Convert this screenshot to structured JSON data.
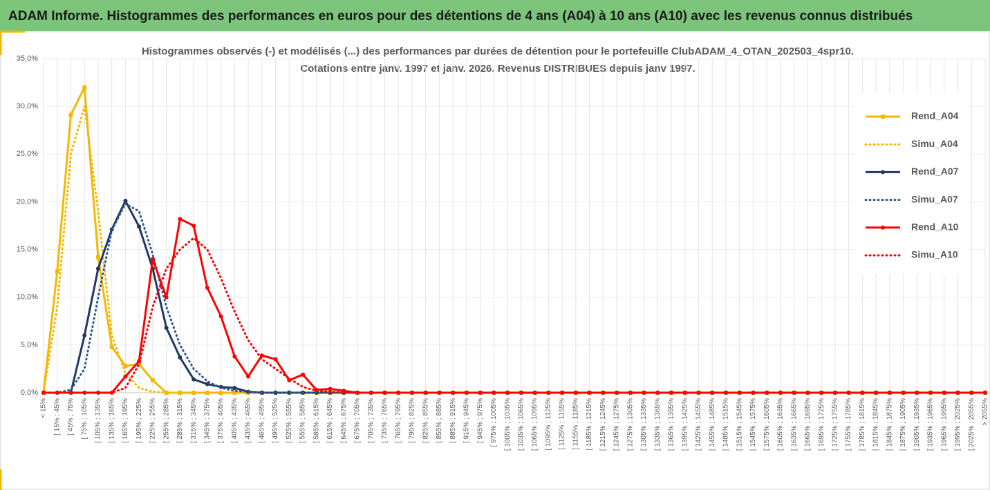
{
  "header": {
    "title": "ADAM Informe. Histogrammes des performances en euros pour des détentions de 4 ans (A04) à 10 ans (A10) avec les revenus connus distribués"
  },
  "chart_data": {
    "type": "line",
    "title": "Histogrammes observés (-) et modélisés (...) des performances par durées de détention pour le portefeuille ClubADAM_4_OTAN_202503_4spr10.",
    "subtitle": "Cotations entre janv. 1997 et janv. 2026. Revenus DISTRIBUES depuis janv 1997.",
    "categories": [
      "< 15%",
      "[ 15% ; 45%",
      "[ 45% ; 75%",
      "[ 75% ; 105%",
      "[ 105% ; 135%",
      "[ 135% ; 165%",
      "[ 165% ; 195%",
      "[ 195% ; 225%",
      "[ 225% ; 255%",
      "[ 255% ; 285%",
      "[ 285% ; 315%",
      "[ 315% ; 345%",
      "[ 345% ; 375%",
      "[ 375% ; 405%",
      "[ 405% ; 435%",
      "[ 435% ; 465%",
      "[ 465% ; 495%",
      "[ 495% ; 525%",
      "[ 525% ; 555%",
      "[ 555% ; 585%",
      "[ 585% ; 615%",
      "[ 615% ; 645%",
      "[ 645% ; 675%",
      "[ 675% ; 705%",
      "[ 705% ; 735%",
      "[ 735% ; 765%",
      "[ 765% ; 795%",
      "[ 795% ; 825%",
      "[ 825% ; 855%",
      "[ 855% ; 885%",
      "[ 885% ; 915%",
      "[ 915% ; 945%",
      "[ 945% ; 975%",
      "[ 975% ; 1005%",
      "[ 1005% ; 1035%",
      "[ 1035% ; 1065%",
      "[ 1065% ; 1095%",
      "[ 1095% ; 1125%",
      "[ 1125% ; 1155%",
      "[ 1155% ; 1185%",
      "[ 1185% ; 1215%",
      "[ 1215% ; 1245%",
      "[ 1245% ; 1275%",
      "[ 1275% ; 1305%",
      "[ 1305% ; 1335%",
      "[ 1335% ; 1365%",
      "[ 1365% ; 1395%",
      "[ 1395% ; 1425%",
      "[ 1425% ; 1455%",
      "[ 1455% ; 1485%",
      "[ 1485% ; 1515%",
      "[ 1515% ; 1545%",
      "[ 1545% ; 1575%",
      "[ 1575% ; 1605%",
      "[ 1605% ; 1635%",
      "[ 1635% ; 1665%",
      "[ 1665% ; 1695%",
      "[ 1695% ; 1725%",
      "[ 1725% ; 1755%",
      "[ 1755% ; 1785%",
      "[ 1785% ; 1815%",
      "[ 1815% ; 1845%",
      "[ 1845% ; 1875%",
      "[ 1875% ; 1905%",
      "[ 1905% ; 1935%",
      "[ 1935% ; 1965%",
      "[ 1965% ; 1995%",
      "[ 1995% ; 2025%",
      "[ 2025% ; 2055%",
      "> 2055%"
    ],
    "ylim": [
      0,
      35
    ],
    "yticks": [
      {
        "value": 0,
        "label": "0,0%"
      },
      {
        "value": 5,
        "label": "5,0%"
      },
      {
        "value": 10,
        "label": "10,0%"
      },
      {
        "value": 15,
        "label": "15,0%"
      },
      {
        "value": 20,
        "label": "20,0%"
      },
      {
        "value": 25,
        "label": "25,0%"
      },
      {
        "value": 30,
        "label": "30,0%"
      },
      {
        "value": 35,
        "label": "35,0%"
      }
    ],
    "grid": true,
    "legend": "right",
    "series": [
      {
        "name": "Rend_A04",
        "color": "#f5b800",
        "style": "solid",
        "marker": "square",
        "values": [
          0,
          12.7,
          29.1,
          32.0,
          14.2,
          4.8,
          2.8,
          3.0,
          1.3,
          0,
          0,
          0,
          0,
          0,
          0,
          0,
          0,
          0,
          0,
          0,
          0,
          0,
          0,
          0,
          0,
          0,
          0,
          0,
          0,
          0,
          0,
          0,
          0,
          0,
          0,
          0,
          0,
          0,
          0,
          0,
          0,
          0,
          0,
          0,
          0,
          0,
          0,
          0,
          0,
          0,
          0,
          0,
          0,
          0,
          0,
          0,
          0,
          0,
          0,
          0,
          0,
          0,
          0,
          0,
          0,
          0,
          0,
          0,
          0,
          0
        ]
      },
      {
        "name": "Simu_A04",
        "color": "#f5b800",
        "style": "dotted",
        "marker": "none",
        "values": [
          0,
          9,
          25,
          30,
          19,
          6,
          2,
          0.5,
          0.1,
          0,
          0,
          0,
          0,
          0,
          0,
          0,
          0,
          0,
          0,
          0,
          0,
          0,
          0,
          0,
          0,
          0,
          0,
          0,
          0,
          0,
          0,
          0,
          0,
          0,
          0,
          0,
          0,
          0,
          0,
          0,
          0,
          0,
          0,
          0,
          0,
          0,
          0,
          0,
          0,
          0,
          0,
          0,
          0,
          0,
          0,
          0,
          0,
          0,
          0,
          0,
          0,
          0,
          0,
          0,
          0,
          0,
          0,
          0,
          0,
          0
        ]
      },
      {
        "name": "Rend_A07",
        "color": "#1f3864",
        "style": "solid",
        "marker": "circle",
        "values": [
          0,
          0,
          0,
          6.0,
          13.0,
          17.1,
          20.1,
          17.4,
          13.0,
          6.8,
          3.7,
          1.4,
          0.9,
          0.6,
          0.5,
          0.1,
          0,
          0,
          0,
          0,
          0,
          0,
          0,
          0,
          0,
          0,
          0,
          0,
          0,
          0,
          0,
          0,
          0,
          0,
          0,
          0,
          0,
          0,
          0,
          0,
          0,
          0,
          0,
          0,
          0,
          0,
          0,
          0,
          0,
          0,
          0,
          0,
          0,
          0,
          0,
          0,
          0,
          0,
          0,
          0,
          0,
          0,
          0,
          0,
          0,
          0,
          0,
          0,
          0,
          0
        ]
      },
      {
        "name": "Simu_A07",
        "color": "#2e5a88",
        "style": "dotted",
        "marker": "none",
        "values": [
          0,
          0,
          0.3,
          2.5,
          10,
          17,
          19.8,
          19,
          14.5,
          9,
          5,
          2.5,
          1.2,
          0.5,
          0.2,
          0.1,
          0,
          0,
          0,
          0,
          0,
          0,
          0,
          0,
          0,
          0,
          0,
          0,
          0,
          0,
          0,
          0,
          0,
          0,
          0,
          0,
          0,
          0,
          0,
          0,
          0,
          0,
          0,
          0,
          0,
          0,
          0,
          0,
          0,
          0,
          0,
          0,
          0,
          0,
          0,
          0,
          0,
          0,
          0,
          0,
          0,
          0,
          0,
          0,
          0,
          0,
          0,
          0,
          0,
          0
        ]
      },
      {
        "name": "Rend_A10",
        "color": "#ff0000",
        "style": "solid",
        "marker": "circle",
        "values": [
          0,
          0,
          0,
          0,
          0,
          0,
          1.7,
          3.3,
          14.0,
          10.0,
          18.2,
          17.5,
          11.0,
          8.0,
          3.8,
          1.7,
          3.9,
          3.5,
          1.3,
          1.9,
          0.3,
          0.4,
          0.2,
          0,
          0,
          0,
          0,
          0,
          0,
          0,
          0,
          0,
          0,
          0,
          0,
          0,
          0,
          0,
          0,
          0,
          0,
          0,
          0,
          0,
          0,
          0,
          0,
          0,
          0,
          0,
          0,
          0,
          0,
          0,
          0,
          0,
          0,
          0,
          0,
          0,
          0,
          0,
          0,
          0,
          0,
          0,
          0,
          0,
          0,
          0
        ]
      },
      {
        "name": "Simu_A10",
        "color": "#ff0000",
        "style": "dotted",
        "marker": "none",
        "values": [
          0,
          0,
          0,
          0,
          0,
          0,
          0.5,
          3,
          9,
          13,
          15,
          16.2,
          15,
          12,
          8.5,
          5.5,
          3.5,
          2.5,
          1.5,
          0.6,
          0.2,
          0.1,
          0,
          0,
          0,
          0,
          0,
          0,
          0,
          0,
          0,
          0,
          0,
          0,
          0,
          0,
          0,
          0,
          0,
          0,
          0,
          0,
          0,
          0,
          0,
          0,
          0,
          0,
          0,
          0,
          0,
          0,
          0,
          0,
          0,
          0,
          0,
          0,
          0,
          0,
          0,
          0,
          0,
          0,
          0,
          0,
          0,
          0,
          0,
          0
        ]
      }
    ]
  }
}
